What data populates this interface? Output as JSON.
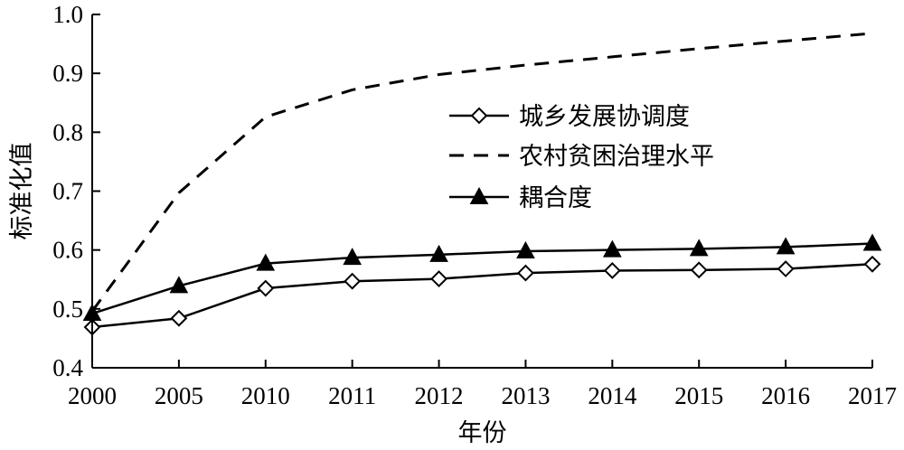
{
  "chart_data": {
    "type": "line",
    "title": "",
    "xlabel": "年份",
    "ylabel": "标准化值",
    "categories": [
      "2000",
      "2005",
      "2010",
      "2011",
      "2012",
      "2013",
      "2014",
      "2015",
      "2016",
      "2017"
    ],
    "ylim": [
      0.4,
      1.0
    ],
    "yticks": [
      "0.4",
      "0.5",
      "0.6",
      "0.7",
      "0.8",
      "0.9",
      "1.0"
    ],
    "grid": false,
    "legend_position": "center-right",
    "series": [
      {
        "name": "城乡发展协调度",
        "style": "solid line with open diamond markers",
        "color": "#000000",
        "values": [
          0.469,
          0.484,
          0.535,
          0.547,
          0.551,
          0.561,
          0.565,
          0.566,
          0.568,
          0.576
        ]
      },
      {
        "name": "农村贫困治理水平",
        "style": "dashed line",
        "color": "#000000",
        "values": [
          0.496,
          0.697,
          0.826,
          0.872,
          0.898,
          0.914,
          0.928,
          0.942,
          0.955,
          0.968
        ]
      },
      {
        "name": "耦合度",
        "style": "solid line with filled triangle markers",
        "color": "#000000",
        "values": [
          0.492,
          0.539,
          0.577,
          0.587,
          0.592,
          0.598,
          0.6,
          0.602,
          0.605,
          0.611
        ]
      }
    ]
  }
}
